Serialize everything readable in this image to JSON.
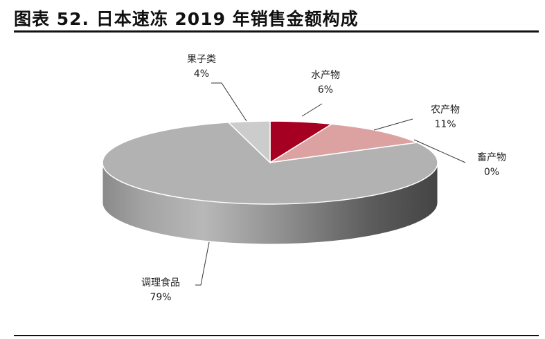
{
  "header": {
    "title": "图表 52. 日本速冻 2019 年销售金额构成"
  },
  "chart_data": {
    "type": "pie",
    "title": "",
    "categories": [
      "水产物",
      "农产物",
      "畜产物",
      "调理食品",
      "果子类"
    ],
    "values": [
      6,
      11,
      0,
      79,
      4
    ],
    "labels": [
      {
        "name": "水产物",
        "pct": "6%"
      },
      {
        "name": "农产物",
        "pct": "11%"
      },
      {
        "name": "畜产物",
        "pct": "0%"
      },
      {
        "name": "调理食品",
        "pct": "79%"
      },
      {
        "name": "果子类",
        "pct": "4%"
      }
    ],
    "colors": [
      "#a50021",
      "#dca2a2",
      "#b0b0b0",
      "#b2b2b2",
      "#cccccc"
    ],
    "style": "3d-pie"
  }
}
